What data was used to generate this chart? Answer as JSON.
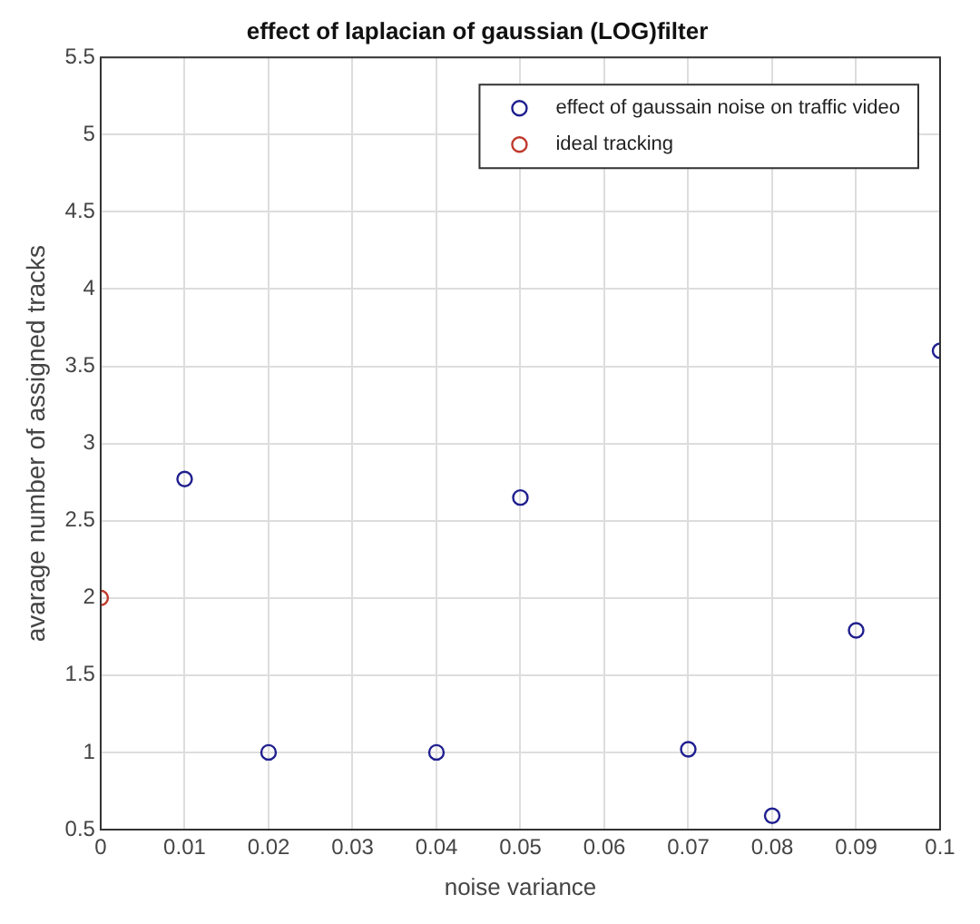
{
  "chart_data": {
    "type": "scatter",
    "title": "effect of laplacian of gaussian (LOG)filter",
    "xlabel": "noise variance",
    "ylabel": "avarage number of assigned tracks",
    "series": [
      {
        "name": "effect of gaussain noise on traffic video",
        "color": "#1f1f8f",
        "x": [
          0.01,
          0.02,
          0.04,
          0.05,
          0.07,
          0.08,
          0.09,
          0.1
        ],
        "values": [
          2.77,
          1.0,
          1.0,
          2.65,
          1.02,
          0.59,
          1.79,
          3.6
        ]
      },
      {
        "name": "ideal tracking",
        "color": "#c0392b",
        "x": [
          0
        ],
        "values": [
          2.0
        ]
      }
    ],
    "xlim": [
      0,
      0.1
    ],
    "xticks": [
      0,
      0.01,
      0.02,
      0.03,
      0.04,
      0.05,
      0.06,
      0.07,
      0.08,
      0.09,
      0.1
    ],
    "ylim": [
      0.5,
      5.5
    ],
    "yticks": [
      0.5,
      1,
      1.5,
      2,
      2.5,
      3,
      3.5,
      4,
      4.5,
      5,
      5.5
    ],
    "grid": true,
    "legend": "top right",
    "marker": "circle"
  }
}
